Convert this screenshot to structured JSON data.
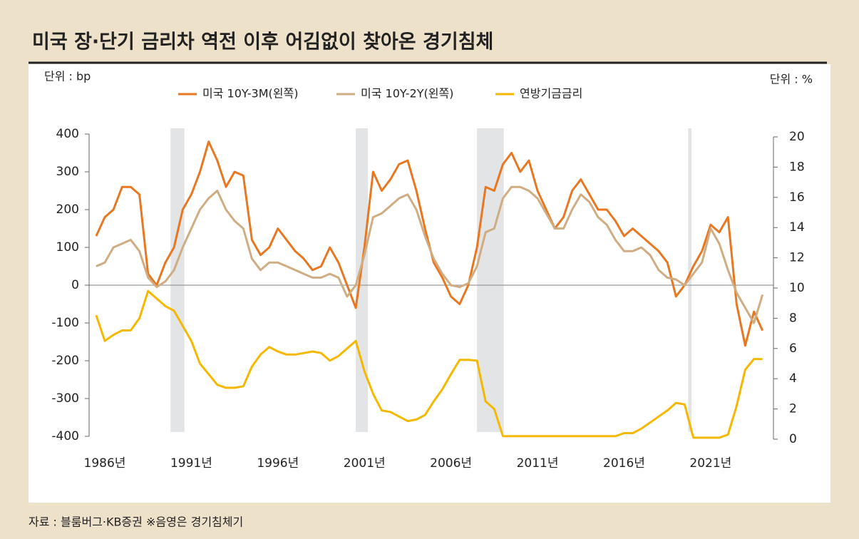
{
  "title": "미국 장·단기 금리차 역전 이후 어김없이 찾아온 경기침체",
  "source": "자료 : 블룸버그·KB증권 ※음영은 경기침체기",
  "chart_data": {
    "type": "line",
    "left_unit": "단위 : bp",
    "right_unit": "단위 : %",
    "x": [
      1985.5,
      1986,
      1986.5,
      1987,
      1987.5,
      1988,
      1988.5,
      1989,
      1989.5,
      1990,
      1990.5,
      1991,
      1991.5,
      1992,
      1992.5,
      1993,
      1993.5,
      1994,
      1994.5,
      1995,
      1995.5,
      1996,
      1996.5,
      1997,
      1997.5,
      1998,
      1998.5,
      1999,
      1999.5,
      2000,
      2000.5,
      2001,
      2001.5,
      2002,
      2002.5,
      2003,
      2003.5,
      2004,
      2004.5,
      2005,
      2005.5,
      2006,
      2006.5,
      2007,
      2007.5,
      2008,
      2008.5,
      2009,
      2009.5,
      2010,
      2010.5,
      2011,
      2011.5,
      2012,
      2012.5,
      2013,
      2013.5,
      2014,
      2014.5,
      2015,
      2015.5,
      2016,
      2016.5,
      2017,
      2017.5,
      2018,
      2018.5,
      2019,
      2019.5,
      2020,
      2020.5,
      2021,
      2021.5,
      2022,
      2022.5,
      2023,
      2023.5,
      2024
    ],
    "xlim": [
      1985.3,
      2024.3
    ],
    "xticks": [
      {
        "value": 1986,
        "label": "1986년"
      },
      {
        "value": 1991,
        "label": "1991년"
      },
      {
        "value": 1996,
        "label": "1996년"
      },
      {
        "value": 2001,
        "label": "2001년"
      },
      {
        "value": 2006,
        "label": "2006년"
      },
      {
        "value": 2011,
        "label": "2011년"
      },
      {
        "value": 2016,
        "label": "2016년"
      },
      {
        "value": 2021,
        "label": "2021년"
      }
    ],
    "ylim": [
      -400,
      400
    ],
    "yticks": [
      -400,
      -300,
      -200,
      -100,
      0,
      100,
      200,
      300,
      400
    ],
    "y2lim": [
      0,
      20
    ],
    "y2ticks": [
      0,
      2,
      4,
      6,
      8,
      10,
      12,
      14,
      16,
      18,
      20
    ],
    "hline": 0,
    "shaded": [
      [
        1989.8,
        1990.6
      ],
      [
        2000.5,
        2001.2
      ],
      [
        2007.5,
        2009.05
      ],
      [
        2019.7,
        2019.9
      ]
    ],
    "shade_color": "#e3e4e6",
    "series": [
      {
        "name": "미국 10Y-3M(왼쪽)",
        "color": "#e87722",
        "values": [
          130,
          180,
          200,
          260,
          260,
          240,
          30,
          0,
          60,
          100,
          200,
          240,
          300,
          380,
          330,
          260,
          300,
          290,
          120,
          80,
          100,
          150,
          120,
          90,
          70,
          40,
          50,
          100,
          60,
          0,
          -60,
          100,
          300,
          250,
          280,
          320,
          330,
          250,
          150,
          60,
          20,
          -30,
          -50,
          0,
          100,
          260,
          250,
          320,
          350,
          300,
          330,
          250,
          200,
          150,
          180,
          250,
          280,
          240,
          200,
          200,
          170,
          130,
          150,
          130,
          110,
          90,
          60,
          -30,
          0,
          50,
          90,
          160,
          140,
          180,
          -50,
          -160,
          -70,
          -120
        ]
      },
      {
        "name": "미국 10Y-2Y(왼쪽)",
        "color": "#cfac82",
        "values": [
          50,
          60,
          100,
          110,
          120,
          90,
          20,
          -5,
          10,
          40,
          100,
          150,
          200,
          230,
          250,
          200,
          170,
          150,
          70,
          40,
          60,
          60,
          50,
          40,
          30,
          20,
          20,
          30,
          20,
          -30,
          0,
          80,
          180,
          190,
          210,
          230,
          240,
          200,
          130,
          70,
          30,
          0,
          -5,
          5,
          50,
          140,
          150,
          230,
          260,
          260,
          250,
          230,
          190,
          150,
          150,
          200,
          240,
          220,
          180,
          160,
          120,
          90,
          90,
          100,
          80,
          40,
          20,
          15,
          0,
          30,
          60,
          150,
          110,
          40,
          -20,
          -60,
          -100,
          -25
        ]
      },
      {
        "name": "연방기금금리",
        "color": "#f5b800",
        "axis": "y2",
        "values": [
          8.2,
          6.5,
          6.9,
          7.2,
          7.2,
          8.0,
          9.8,
          9.3,
          8.8,
          8.5,
          7.5,
          6.5,
          5.0,
          4.3,
          3.6,
          3.4,
          3.4,
          3.5,
          4.8,
          5.6,
          6.1,
          5.8,
          5.6,
          5.6,
          5.7,
          5.8,
          5.7,
          5.2,
          5.5,
          6.0,
          6.5,
          4.5,
          3.0,
          1.9,
          1.8,
          1.5,
          1.2,
          1.3,
          1.6,
          2.5,
          3.3,
          4.3,
          5.25,
          5.25,
          5.2,
          2.5,
          2.0,
          0.2,
          0.2,
          0.2,
          0.2,
          0.2,
          0.2,
          0.2,
          0.2,
          0.2,
          0.2,
          0.2,
          0.2,
          0.2,
          0.2,
          0.4,
          0.4,
          0.7,
          1.1,
          1.5,
          1.9,
          2.4,
          2.3,
          0.1,
          0.1,
          0.1,
          0.1,
          0.3,
          2.2,
          4.6,
          5.3,
          5.3
        ]
      }
    ]
  }
}
